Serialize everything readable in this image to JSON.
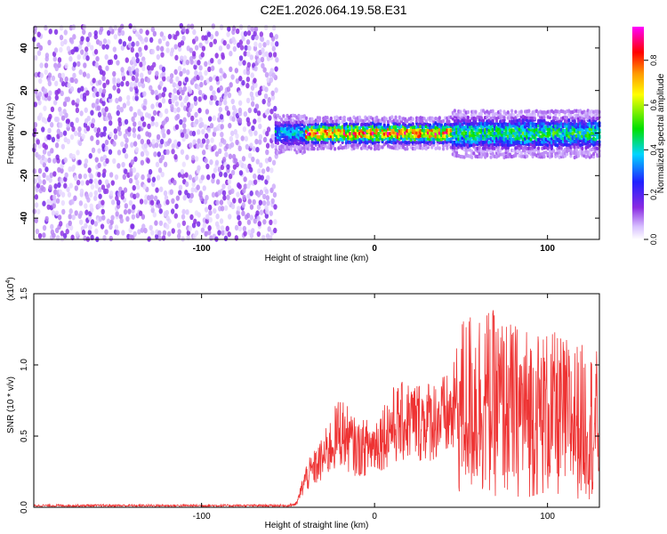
{
  "figure": {
    "title": "C2E1.2026.064.19.58.E31"
  },
  "chart_data": [
    {
      "type": "heatmap",
      "title": "C2E1.2026.064.19.58.E31",
      "xlabel": "Height of straight line (km)",
      "ylabel": "Frequency (Hz)",
      "xlim": [
        -197,
        130
      ],
      "ylim": [
        -50,
        50
      ],
      "x_ticks": [
        -100,
        0,
        100
      ],
      "y_ticks": [
        40,
        20,
        0,
        -20,
        -40
      ],
      "colorbar": {
        "label": "Normalized spectral amplitude",
        "range": [
          0,
          0.95
        ],
        "ticks": [
          0.0,
          0.2,
          0.4,
          0.6,
          0.8
        ],
        "colormap": "rainbow (white-violet-blue-cyan-green-yellow-red-magenta)"
      },
      "regions": [
        {
          "x_range": [
            -197,
            -57
          ],
          "y_range": [
            -50,
            50
          ],
          "amplitude": "low (~0.02-0.15), noisy"
        },
        {
          "x_range": [
            -57,
            45
          ],
          "y_center": 0,
          "y_halfwidth": 4,
          "amplitude": "peak up to ~0.9 near x=-20..45"
        },
        {
          "x_range": [
            45,
            130
          ],
          "y_center": 0,
          "y_halfwidth": 8,
          "amplitude": "moderate ~0.3-0.6"
        }
      ],
      "grid": false
    },
    {
      "type": "line",
      "xlabel": "Height of straight line (km)",
      "ylabel": "SNR (10 * v/v)",
      "y_multiplier": "(x10^4)",
      "xlim": [
        -197,
        130
      ],
      "ylim": [
        0,
        1.5
      ],
      "x_ticks": [
        -100,
        0,
        100
      ],
      "y_ticks": [
        0.0,
        0.5,
        1.0,
        1.5
      ],
      "series": [
        {
          "color": "#ee3333",
          "envelope": [
            {
              "x": -197,
              "y": 0.02
            },
            {
              "x": -50,
              "y": 0.02
            },
            {
              "x": -45,
              "y": 0.04
            },
            {
              "x": -40,
              "y": 0.3
            },
            {
              "x": -30,
              "y": 0.5
            },
            {
              "x": -20,
              "y": 0.8
            },
            {
              "x": -10,
              "y": 0.6
            },
            {
              "x": 0,
              "y": 0.65
            },
            {
              "x": 10,
              "y": 0.85
            },
            {
              "x": 20,
              "y": 0.9
            },
            {
              "x": 30,
              "y": 0.9
            },
            {
              "x": 45,
              "y": 0.95
            },
            {
              "x": 50,
              "y": 1.35
            },
            {
              "x": 60,
              "y": 1.45
            },
            {
              "x": 80,
              "y": 1.3
            },
            {
              "x": 100,
              "y": 1.25
            },
            {
              "x": 130,
              "y": 1.1
            }
          ]
        }
      ],
      "grid": false
    }
  ],
  "colors": {
    "line": "#ee3333",
    "axis": "#000000"
  }
}
